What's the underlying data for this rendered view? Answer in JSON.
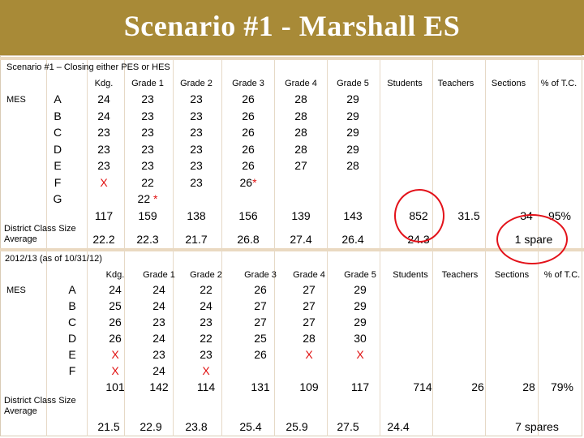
{
  "title": "Scenario #1 - Marshall ES",
  "scenario": {
    "caption": "Scenario #1 – Closing either PES or HES",
    "school": "MES",
    "headers": [
      "Kdg.",
      "Grade 1",
      "Grade 2",
      "Grade 3",
      "Grade 4",
      "Grade 5",
      "Students",
      "Teachers",
      "Sections",
      "% of T.C."
    ],
    "rows": [
      {
        "label": "A",
        "cells": [
          "24",
          "23",
          "23",
          "26",
          "28",
          "29"
        ]
      },
      {
        "label": "B",
        "cells": [
          "24",
          "23",
          "23",
          "26",
          "28",
          "29"
        ]
      },
      {
        "label": "C",
        "cells": [
          "23",
          "23",
          "23",
          "26",
          "28",
          "29"
        ]
      },
      {
        "label": "D",
        "cells": [
          "23",
          "23",
          "23",
          "26",
          "28",
          "29"
        ]
      },
      {
        "label": "E",
        "cells": [
          "23",
          "23",
          "23",
          "26",
          "27",
          "28"
        ]
      },
      {
        "label": "F",
        "cells": [
          "X",
          "22",
          "23",
          "26*"
        ]
      },
      {
        "label": "G",
        "cells": [
          "",
          "22 *"
        ]
      }
    ],
    "totals": [
      "117",
      "159",
      "138",
      "156",
      "139",
      "143",
      "852",
      "31.5",
      "34",
      "95%"
    ],
    "avg_label": "District Class Size Average",
    "averages": [
      "22.2",
      "22.3",
      "21.7",
      "26.8",
      "27.4",
      "26.4",
      "24.3"
    ],
    "spare": "1 spare"
  },
  "current": {
    "caption": "2012/13 (as of 10/31/12)",
    "school": "MES",
    "headers": [
      "Kdg.",
      "Grade 1",
      "Grade 2",
      "Grade 3",
      "Grade 4",
      "Grade 5",
      "Students",
      "Teachers",
      "Sections",
      "% of T.C."
    ],
    "rows": [
      {
        "label": "A",
        "cells": [
          "24",
          "24",
          "22",
          "26",
          "27",
          "29"
        ]
      },
      {
        "label": "B",
        "cells": [
          "25",
          "24",
          "24",
          "27",
          "27",
          "29"
        ]
      },
      {
        "label": "C",
        "cells": [
          "26",
          "23",
          "23",
          "27",
          "27",
          "29"
        ]
      },
      {
        "label": "D",
        "cells": [
          "26",
          "24",
          "22",
          "25",
          "28",
          "30"
        ]
      },
      {
        "label": "E",
        "cells": [
          "X",
          "23",
          "23",
          "26",
          "X",
          "X"
        ]
      },
      {
        "label": "F",
        "cells": [
          "X",
          "24",
          "X"
        ]
      }
    ],
    "totals": [
      "101",
      "142",
      "114",
      "131",
      "109",
      "117",
      "714",
      "26",
      "28",
      "79%"
    ],
    "avg_label": "District Class Size Average",
    "averages": [
      "21.5",
      "22.9",
      "23.8",
      "25.4",
      "25.9",
      "27.5",
      "24.4"
    ],
    "spare": "7 spares"
  },
  "colors": {
    "banner": "#a88a37",
    "accent": "#e01010",
    "stripe": "#ead9c1"
  }
}
